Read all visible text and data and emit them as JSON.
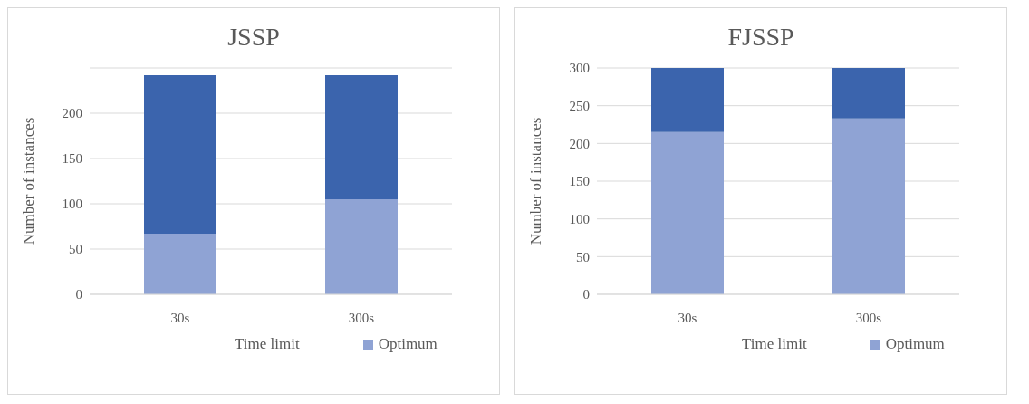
{
  "chart_data": [
    {
      "type": "bar",
      "title": "JSSP",
      "xlabel": "Time limit",
      "ylabel": "Number of instances",
      "categories": [
        "30s",
        "300s"
      ],
      "stacked": true,
      "legend": "bottom",
      "grid": "y",
      "ylim": [
        0,
        250
      ],
      "yticks": [
        0,
        50,
        100,
        150,
        200
      ],
      "series": [
        {
          "name": "Optimum",
          "color": "#8fa3d4",
          "values": [
            67,
            105
          ]
        },
        {
          "color": "#3b64ad",
          "values": [
            175,
            137
          ]
        }
      ]
    },
    {
      "type": "bar",
      "title": "FJSSP",
      "xlabel": "Time limit",
      "ylabel": "Number of instances",
      "categories": [
        "30s",
        "300s"
      ],
      "stacked": true,
      "legend": "bottom",
      "grid": "y",
      "ylim": [
        0,
        300
      ],
      "yticks": [
        0,
        50,
        100,
        150,
        200,
        250,
        300
      ],
      "series": [
        {
          "name": "Optimum",
          "color": "#8fa3d4",
          "values": [
            215,
            233
          ]
        },
        {
          "color": "#3b64ad",
          "values": [
            85,
            67
          ]
        }
      ]
    }
  ]
}
